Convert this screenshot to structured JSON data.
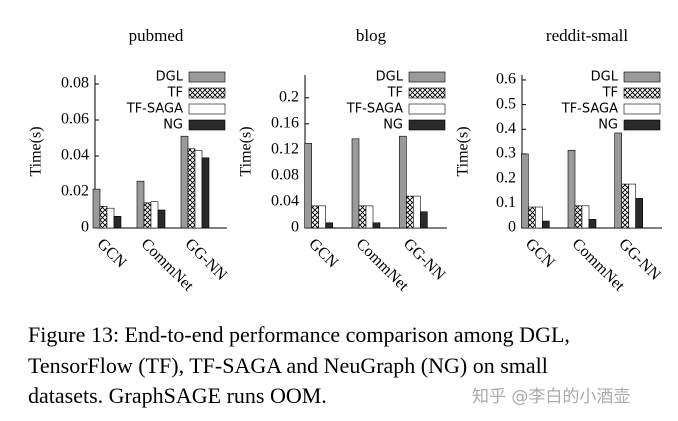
{
  "chart_data": [
    {
      "type": "bar",
      "title": "pubmed",
      "y_label": "Time(s)",
      "categories": [
        "GCN",
        "CommNet",
        "GG-NN"
      ],
      "ylim": [
        0,
        0.085
      ],
      "yticks": [
        0,
        0.02,
        0.04,
        0.06,
        0.08
      ],
      "legend": "upper right",
      "series": [
        {
          "name": "DGL",
          "color": "#9a9a9a",
          "pattern": "solid",
          "values": [
            0.0216,
            0.026,
            0.051
          ]
        },
        {
          "name": "TF",
          "color": "#000000",
          "pattern": "crosshatch",
          "values": [
            0.012,
            0.014,
            0.044
          ]
        },
        {
          "name": "TF-SAGA",
          "color": "#ffffff",
          "pattern": "solid",
          "values": [
            0.011,
            0.0146,
            0.043
          ]
        },
        {
          "name": "NG",
          "color": "#2a2a2a",
          "pattern": "solid",
          "values": [
            0.0065,
            0.01,
            0.039
          ]
        }
      ]
    },
    {
      "type": "bar",
      "title": "blog",
      "y_label": "Time(s)",
      "categories": [
        "GCN",
        "CommNet",
        "GG-NN"
      ],
      "ylim": [
        0,
        0.235
      ],
      "yticks": [
        0,
        0.04,
        0.08,
        0.12,
        0.16,
        0.2
      ],
      "legend": "upper right",
      "series": [
        {
          "name": "DGL",
          "color": "#9a9a9a",
          "pattern": "solid",
          "values": [
            0.13,
            0.137,
            0.141
          ]
        },
        {
          "name": "TF",
          "color": "#000000",
          "pattern": "crosshatch",
          "values": [
            0.034,
            0.034,
            0.049
          ]
        },
        {
          "name": "TF-SAGA",
          "color": "#ffffff",
          "pattern": "solid",
          "values": [
            0.034,
            0.034,
            0.049
          ]
        },
        {
          "name": "NG",
          "color": "#2a2a2a",
          "pattern": "solid",
          "values": [
            0.008,
            0.008,
            0.025
          ]
        }
      ]
    },
    {
      "type": "bar",
      "title": "reddit-small",
      "y_label": "Time(s)",
      "categories": [
        "GCN",
        "CommNet",
        "GG-NN"
      ],
      "ylim": [
        0,
        0.62
      ],
      "yticks": [
        0,
        0.1,
        0.2,
        0.3,
        0.4,
        0.5,
        0.6
      ],
      "legend": "upper right",
      "series": [
        {
          "name": "DGL",
          "color": "#9a9a9a",
          "pattern": "solid",
          "values": [
            0.3,
            0.315,
            0.385
          ]
        },
        {
          "name": "TF",
          "color": "#000000",
          "pattern": "crosshatch",
          "values": [
            0.085,
            0.09,
            0.178
          ]
        },
        {
          "name": "TF-SAGA",
          "color": "#ffffff",
          "pattern": "solid",
          "values": [
            0.085,
            0.09,
            0.178
          ]
        },
        {
          "name": "NG",
          "color": "#2a2a2a",
          "pattern": "solid",
          "values": [
            0.028,
            0.035,
            0.12
          ]
        }
      ]
    }
  ],
  "caption": [
    "Figure 13: End-to-end performance comparison among DGL,",
    "TensorFlow (TF), TF-SAGA and NeuGraph (NG) on small",
    "datasets. GraphSAGE runs OOM."
  ],
  "watermark": "知乎 @李白的小酒壶"
}
